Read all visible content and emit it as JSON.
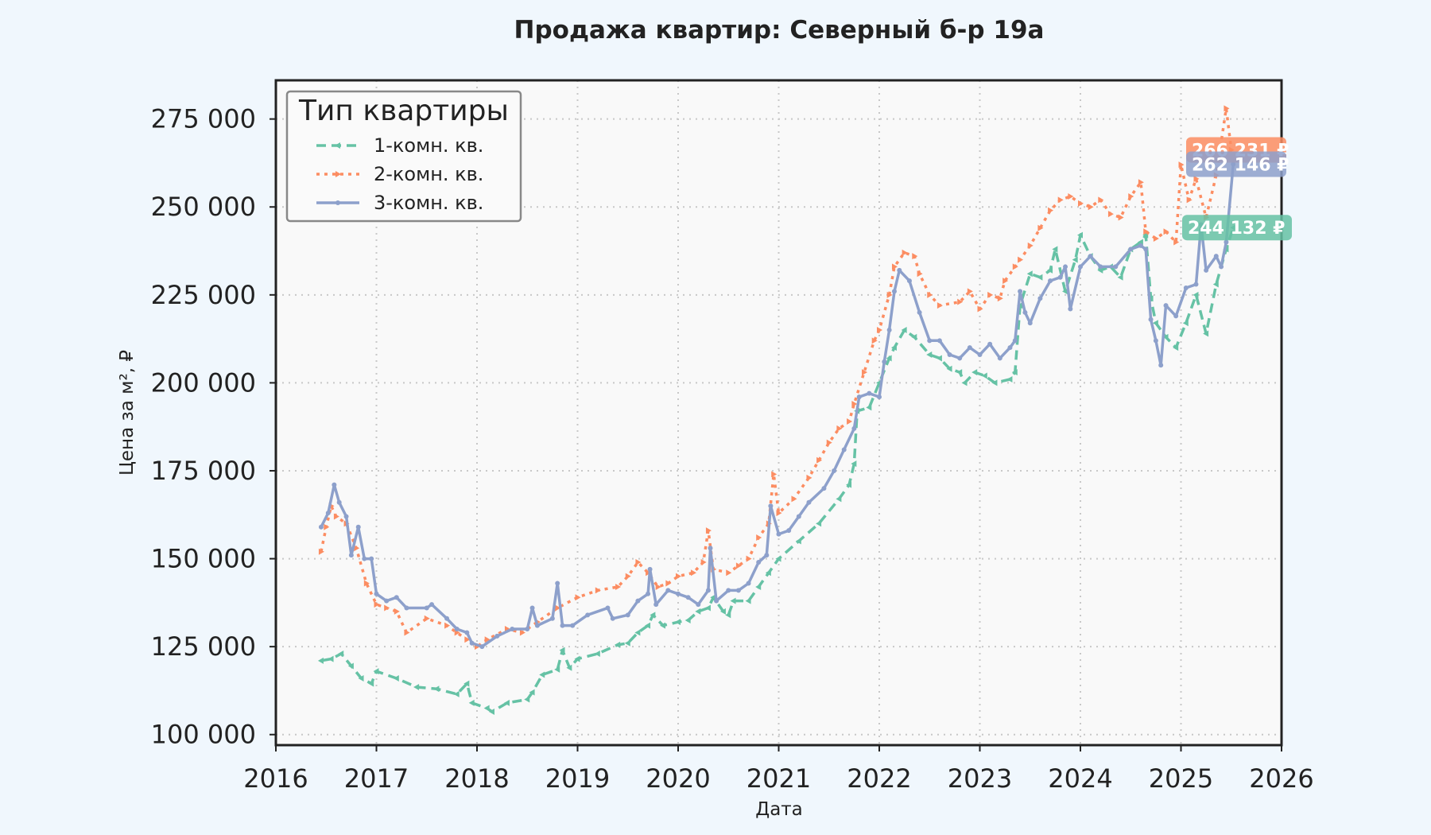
{
  "chart_data": {
    "type": "line",
    "title": "Продажа квартир: Северный б-р 19а",
    "xlabel": "Дата",
    "ylabel": "Цена за м², ₽",
    "xlim": [
      2016,
      2026
    ],
    "ylim": [
      97000,
      286000
    ],
    "x_ticks": [
      "2016",
      "2017",
      "2018",
      "2019",
      "2020",
      "2021",
      "2022",
      "2023",
      "2024",
      "2025",
      "2026"
    ],
    "y_ticks": [
      {
        "value": 100000,
        "label": "100 000"
      },
      {
        "value": 125000,
        "label": "125 000"
      },
      {
        "value": 150000,
        "label": "150 000"
      },
      {
        "value": 175000,
        "label": "175 000"
      },
      {
        "value": 200000,
        "label": "200 000"
      },
      {
        "value": 225000,
        "label": "225 000"
      },
      {
        "value": 250000,
        "label": "250 000"
      },
      {
        "value": 275000,
        "label": "275 000"
      }
    ],
    "grid": true,
    "legend": {
      "title": "Тип квартиры",
      "position": "top-left"
    },
    "series": [
      {
        "name": "1-комн. кв.",
        "color": "#66c2a5",
        "style": "dashed",
        "marker": "triangle-left",
        "end_label": "244 132 ₽",
        "points": [
          [
            2016.45,
            121000
          ],
          [
            2016.55,
            121500
          ],
          [
            2016.65,
            123000
          ],
          [
            2016.75,
            119500
          ],
          [
            2016.85,
            116000
          ],
          [
            2016.95,
            114500
          ],
          [
            2017.0,
            118000
          ],
          [
            2017.2,
            116000
          ],
          [
            2017.4,
            113500
          ],
          [
            2017.6,
            113000
          ],
          [
            2017.8,
            111500
          ],
          [
            2017.9,
            114500
          ],
          [
            2017.95,
            109000
          ],
          [
            2018.1,
            107500
          ],
          [
            2018.15,
            106500
          ],
          [
            2018.3,
            109000
          ],
          [
            2018.5,
            110000
          ],
          [
            2018.55,
            112000
          ],
          [
            2018.65,
            117000
          ],
          [
            2018.8,
            118500
          ],
          [
            2018.85,
            124000
          ],
          [
            2018.92,
            119000
          ],
          [
            2019.0,
            121500
          ],
          [
            2019.2,
            123000
          ],
          [
            2019.4,
            125500
          ],
          [
            2019.5,
            126000
          ],
          [
            2019.6,
            129000
          ],
          [
            2019.7,
            131000
          ],
          [
            2019.75,
            134000
          ],
          [
            2019.85,
            131000
          ],
          [
            2020.0,
            132000
          ],
          [
            2020.1,
            132500
          ],
          [
            2020.2,
            135000
          ],
          [
            2020.3,
            136000
          ],
          [
            2020.35,
            139000
          ],
          [
            2020.45,
            135000
          ],
          [
            2020.5,
            134000
          ],
          [
            2020.55,
            138000
          ],
          [
            2020.7,
            138000
          ],
          [
            2020.8,
            142000
          ],
          [
            2020.9,
            146000
          ],
          [
            2021.0,
            150000
          ],
          [
            2021.2,
            155000
          ],
          [
            2021.4,
            160000
          ],
          [
            2021.6,
            167000
          ],
          [
            2021.7,
            171000
          ],
          [
            2021.75,
            177000
          ],
          [
            2021.78,
            192000
          ],
          [
            2021.9,
            193000
          ],
          [
            2022.0,
            200000
          ],
          [
            2022.1,
            207000
          ],
          [
            2022.15,
            210000
          ],
          [
            2022.25,
            215000
          ],
          [
            2022.35,
            213000
          ],
          [
            2022.5,
            208000
          ],
          [
            2022.6,
            207000
          ],
          [
            2022.7,
            204000
          ],
          [
            2022.8,
            203000
          ],
          [
            2022.85,
            200000
          ],
          [
            2022.95,
            203000
          ],
          [
            2023.05,
            202000
          ],
          [
            2023.15,
            200000
          ],
          [
            2023.3,
            201000
          ],
          [
            2023.35,
            203000
          ],
          [
            2023.4,
            222000
          ],
          [
            2023.5,
            231000
          ],
          [
            2023.6,
            230000
          ],
          [
            2023.7,
            232000
          ],
          [
            2023.75,
            238000
          ],
          [
            2023.85,
            226000
          ],
          [
            2023.95,
            235000
          ],
          [
            2024.0,
            242000
          ],
          [
            2024.1,
            236000
          ],
          [
            2024.2,
            232000
          ],
          [
            2024.3,
            233000
          ],
          [
            2024.4,
            230000
          ],
          [
            2024.5,
            238000
          ],
          [
            2024.6,
            240000
          ],
          [
            2024.65,
            242000
          ],
          [
            2024.7,
            224000
          ],
          [
            2024.75,
            217000
          ],
          [
            2024.85,
            213000
          ],
          [
            2024.95,
            210000
          ],
          [
            2025.05,
            217000
          ],
          [
            2025.15,
            225000
          ],
          [
            2025.25,
            214000
          ],
          [
            2025.35,
            228000
          ],
          [
            2025.45,
            238000
          ],
          [
            2025.52,
            244132
          ]
        ]
      },
      {
        "name": "2-комн. кв.",
        "color": "#fc8d62",
        "style": "dotted",
        "marker": "triangle-right",
        "end_label": "266 231 ₽",
        "points": [
          [
            2016.45,
            152000
          ],
          [
            2016.5,
            159000
          ],
          [
            2016.55,
            165000
          ],
          [
            2016.6,
            162000
          ],
          [
            2016.7,
            160000
          ],
          [
            2016.8,
            153000
          ],
          [
            2016.9,
            143000
          ],
          [
            2017.0,
            137000
          ],
          [
            2017.1,
            136000
          ],
          [
            2017.2,
            135000
          ],
          [
            2017.3,
            129000
          ],
          [
            2017.5,
            133000
          ],
          [
            2017.7,
            131000
          ],
          [
            2017.8,
            129000
          ],
          [
            2017.9,
            127000
          ],
          [
            2018.0,
            125000
          ],
          [
            2018.1,
            127000
          ],
          [
            2018.3,
            130000
          ],
          [
            2018.45,
            129000
          ],
          [
            2018.6,
            132000
          ],
          [
            2018.8,
            136000
          ],
          [
            2019.0,
            139000
          ],
          [
            2019.2,
            141000
          ],
          [
            2019.4,
            142000
          ],
          [
            2019.5,
            145000
          ],
          [
            2019.6,
            149000
          ],
          [
            2019.7,
            146000
          ],
          [
            2019.8,
            142000
          ],
          [
            2019.9,
            143000
          ],
          [
            2020.0,
            145000
          ],
          [
            2020.15,
            146000
          ],
          [
            2020.25,
            149000
          ],
          [
            2020.3,
            158000
          ],
          [
            2020.35,
            147000
          ],
          [
            2020.5,
            146000
          ],
          [
            2020.6,
            148000
          ],
          [
            2020.7,
            150000
          ],
          [
            2020.8,
            156000
          ],
          [
            2020.9,
            160000
          ],
          [
            2020.95,
            174000
          ],
          [
            2021.0,
            163000
          ],
          [
            2021.15,
            167000
          ],
          [
            2021.3,
            173000
          ],
          [
            2021.4,
            178000
          ],
          [
            2021.5,
            183000
          ],
          [
            2021.6,
            187000
          ],
          [
            2021.7,
            189000
          ],
          [
            2021.75,
            194000
          ],
          [
            2021.85,
            203000
          ],
          [
            2021.95,
            212000
          ],
          [
            2022.0,
            215000
          ],
          [
            2022.1,
            225000
          ],
          [
            2022.15,
            233000
          ],
          [
            2022.25,
            237000
          ],
          [
            2022.35,
            236000
          ],
          [
            2022.4,
            231000
          ],
          [
            2022.5,
            225000
          ],
          [
            2022.6,
            222000
          ],
          [
            2022.8,
            223000
          ],
          [
            2022.9,
            226000
          ],
          [
            2023.0,
            221000
          ],
          [
            2023.1,
            225000
          ],
          [
            2023.2,
            224000
          ],
          [
            2023.25,
            229000
          ],
          [
            2023.35,
            233000
          ],
          [
            2023.4,
            235000
          ],
          [
            2023.5,
            239000
          ],
          [
            2023.6,
            244000
          ],
          [
            2023.7,
            249000
          ],
          [
            2023.8,
            252000
          ],
          [
            2023.9,
            253000
          ],
          [
            2024.0,
            251000
          ],
          [
            2024.1,
            250000
          ],
          [
            2024.2,
            252000
          ],
          [
            2024.3,
            248000
          ],
          [
            2024.4,
            247000
          ],
          [
            2024.5,
            253000
          ],
          [
            2024.6,
            257000
          ],
          [
            2024.65,
            243000
          ],
          [
            2024.75,
            241000
          ],
          [
            2024.85,
            243000
          ],
          [
            2024.95,
            240000
          ],
          [
            2025.0,
            262000
          ],
          [
            2025.08,
            252000
          ],
          [
            2025.15,
            258000
          ],
          [
            2025.25,
            247000
          ],
          [
            2025.35,
            259000
          ],
          [
            2025.45,
            278000
          ],
          [
            2025.5,
            266231
          ]
        ]
      },
      {
        "name": "3-комн. кв.",
        "color": "#8da0cb",
        "style": "solid",
        "marker": "dot",
        "end_label": "262 146 ₽",
        "points": [
          [
            2016.45,
            159000
          ],
          [
            2016.52,
            163000
          ],
          [
            2016.58,
            171000
          ],
          [
            2016.63,
            166000
          ],
          [
            2016.7,
            162000
          ],
          [
            2016.75,
            151000
          ],
          [
            2016.82,
            159000
          ],
          [
            2016.88,
            150000
          ],
          [
            2016.95,
            150000
          ],
          [
            2017.0,
            140000
          ],
          [
            2017.1,
            138000
          ],
          [
            2017.2,
            139000
          ],
          [
            2017.3,
            136000
          ],
          [
            2017.5,
            136000
          ],
          [
            2017.55,
            137000
          ],
          [
            2017.7,
            133000
          ],
          [
            2017.8,
            130000
          ],
          [
            2017.9,
            129000
          ],
          [
            2017.95,
            126000
          ],
          [
            2018.05,
            125000
          ],
          [
            2018.2,
            128000
          ],
          [
            2018.35,
            130000
          ],
          [
            2018.5,
            130000
          ],
          [
            2018.55,
            136000
          ],
          [
            2018.6,
            131000
          ],
          [
            2018.75,
            133000
          ],
          [
            2018.8,
            143000
          ],
          [
            2018.85,
            131000
          ],
          [
            2018.95,
            131000
          ],
          [
            2019.1,
            134000
          ],
          [
            2019.3,
            136000
          ],
          [
            2019.35,
            133000
          ],
          [
            2019.5,
            134000
          ],
          [
            2019.6,
            138000
          ],
          [
            2019.7,
            140000
          ],
          [
            2019.72,
            147000
          ],
          [
            2019.78,
            137000
          ],
          [
            2019.9,
            141000
          ],
          [
            2020.0,
            140000
          ],
          [
            2020.1,
            139000
          ],
          [
            2020.2,
            137000
          ],
          [
            2020.3,
            141000
          ],
          [
            2020.32,
            153000
          ],
          [
            2020.38,
            138000
          ],
          [
            2020.5,
            141000
          ],
          [
            2020.6,
            141000
          ],
          [
            2020.7,
            143000
          ],
          [
            2020.8,
            149000
          ],
          [
            2020.88,
            151000
          ],
          [
            2020.92,
            165000
          ],
          [
            2021.0,
            157000
          ],
          [
            2021.1,
            158000
          ],
          [
            2021.2,
            162000
          ],
          [
            2021.3,
            166000
          ],
          [
            2021.45,
            170000
          ],
          [
            2021.55,
            175000
          ],
          [
            2021.65,
            181000
          ],
          [
            2021.75,
            187000
          ],
          [
            2021.8,
            196000
          ],
          [
            2021.9,
            197000
          ],
          [
            2022.0,
            196000
          ],
          [
            2022.05,
            206000
          ],
          [
            2022.1,
            215000
          ],
          [
            2022.15,
            226000
          ],
          [
            2022.2,
            232000
          ],
          [
            2022.3,
            229000
          ],
          [
            2022.4,
            220000
          ],
          [
            2022.5,
            212000
          ],
          [
            2022.6,
            212000
          ],
          [
            2022.7,
            208000
          ],
          [
            2022.8,
            207000
          ],
          [
            2022.9,
            210000
          ],
          [
            2023.0,
            208000
          ],
          [
            2023.1,
            211000
          ],
          [
            2023.2,
            207000
          ],
          [
            2023.3,
            210000
          ],
          [
            2023.35,
            212000
          ],
          [
            2023.4,
            226000
          ],
          [
            2023.45,
            220000
          ],
          [
            2023.5,
            217000
          ],
          [
            2023.6,
            224000
          ],
          [
            2023.7,
            229000
          ],
          [
            2023.8,
            230000
          ],
          [
            2023.85,
            233000
          ],
          [
            2023.9,
            221000
          ],
          [
            2024.0,
            233000
          ],
          [
            2024.1,
            236000
          ],
          [
            2024.2,
            233000
          ],
          [
            2024.35,
            233000
          ],
          [
            2024.5,
            238000
          ],
          [
            2024.6,
            239000
          ],
          [
            2024.65,
            238000
          ],
          [
            2024.7,
            218000
          ],
          [
            2024.75,
            212000
          ],
          [
            2024.8,
            205000
          ],
          [
            2024.85,
            222000
          ],
          [
            2024.95,
            219000
          ],
          [
            2025.05,
            227000
          ],
          [
            2025.15,
            228000
          ],
          [
            2025.2,
            245000
          ],
          [
            2025.25,
            232000
          ],
          [
            2025.35,
            236000
          ],
          [
            2025.4,
            233000
          ],
          [
            2025.45,
            240000
          ],
          [
            2025.52,
            262146
          ]
        ]
      }
    ]
  }
}
